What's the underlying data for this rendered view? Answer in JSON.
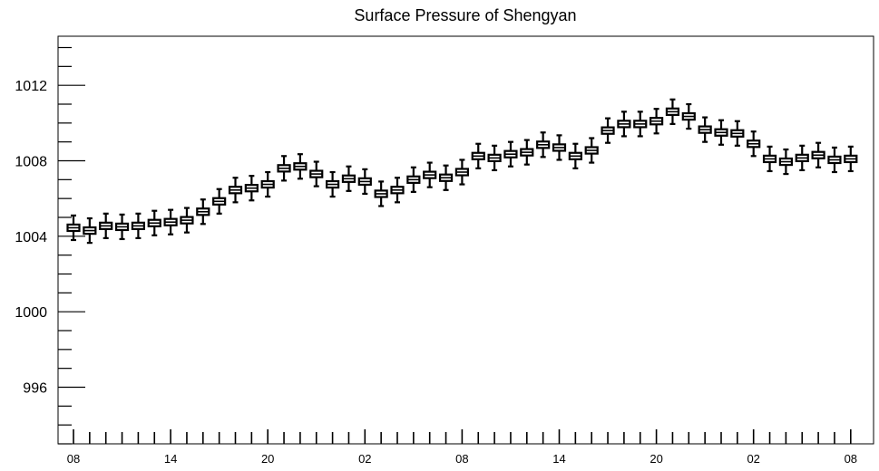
{
  "chart_data": {
    "type": "box",
    "title": "Surface Pressure of Shengyan",
    "xlabel": "",
    "ylabel": "",
    "ylim": [
      993,
      1014.6
    ],
    "yticks": [
      996,
      1000,
      1004,
      1008,
      1012
    ],
    "ytick_labels": [
      "996",
      "1000",
      "1004",
      "1008",
      "1012"
    ],
    "y_minor_step": 1,
    "x_count": 49,
    "xticks": [
      0,
      6,
      12,
      18,
      24,
      30,
      36,
      42,
      48
    ],
    "xtick_labels": [
      "08",
      "14",
      "20",
      "02",
      "08",
      "14",
      "20",
      "02",
      "08"
    ],
    "grid": false,
    "color": "#000000",
    "medians": [
      1004.45,
      1004.3,
      1004.55,
      1004.5,
      1004.55,
      1004.7,
      1004.75,
      1004.85,
      1005.3,
      1005.85,
      1006.45,
      1006.55,
      1006.75,
      1007.6,
      1007.7,
      1007.3,
      1006.75,
      1007.05,
      1006.9,
      1006.25,
      1006.45,
      1007.0,
      1007.25,
      1007.1,
      1007.4,
      1008.25,
      1008.15,
      1008.35,
      1008.45,
      1008.85,
      1008.7,
      1008.25,
      1008.55,
      1009.6,
      1009.95,
      1009.95,
      1010.1,
      1010.6,
      1010.35,
      1009.65,
      1009.5,
      1009.45,
      1008.9,
      1008.1,
      1007.95,
      1008.15,
      1008.3,
      1008.05,
      1008.1
    ],
    "box_half_height": 0.17,
    "whisker_half_range": 0.65
  }
}
